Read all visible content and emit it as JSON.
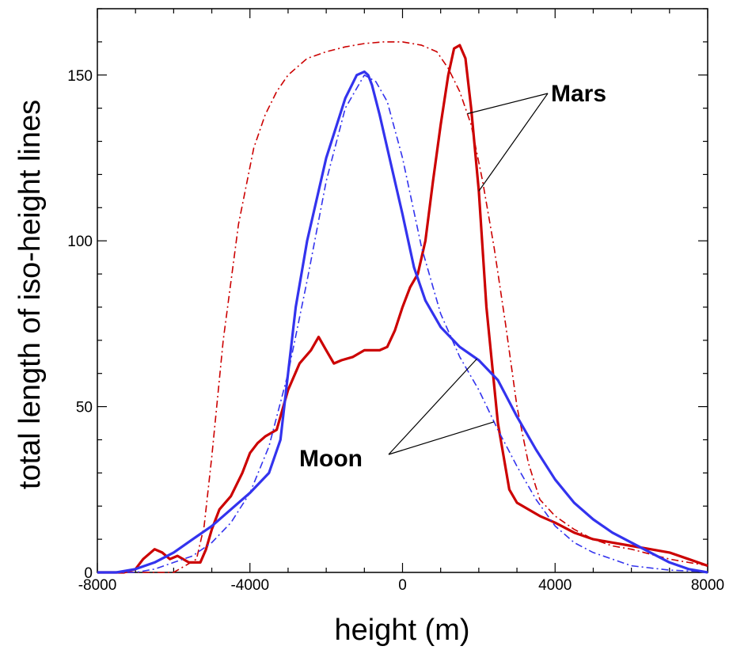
{
  "chart_data": {
    "type": "line",
    "title": "",
    "xlabel": "height (m)",
    "ylabel": "total length of iso-height lines",
    "xlim": [
      -8000,
      8000
    ],
    "ylim": [
      0,
      170
    ],
    "x_ticks": [
      -8000,
      -4000,
      0,
      4000,
      8000
    ],
    "x_tick_labels": [
      "-8000",
      "-4000",
      "0",
      "4000",
      "8000"
    ],
    "y_ticks": [
      0,
      50,
      100,
      150
    ],
    "y_tick_labels": [
      "0",
      "50",
      "100",
      "150"
    ],
    "grid": false,
    "legend": "none",
    "annotations": [
      {
        "text": "Mars",
        "points_to": [
          "mars-fit",
          "mars-data"
        ]
      },
      {
        "text": "Moon",
        "points_to": [
          "moon-fit",
          "moon-data"
        ]
      }
    ],
    "series": [
      {
        "id": "mars-data",
        "style": "solid",
        "color": "#cc0000",
        "x": [
          -8000,
          -7300,
          -7000,
          -6800,
          -6500,
          -6300,
          -6100,
          -5900,
          -5600,
          -5300,
          -5150,
          -5000,
          -4800,
          -4500,
          -4200,
          -4000,
          -3800,
          -3600,
          -3300,
          -3000,
          -2700,
          -2400,
          -2200,
          -2000,
          -1800,
          -1600,
          -1300,
          -1000,
          -800,
          -600,
          -400,
          -200,
          0,
          200,
          400,
          600,
          800,
          1000,
          1200,
          1350,
          1500,
          1650,
          1800,
          2000,
          2200,
          2500,
          2800,
          3000,
          3300,
          3600,
          4000,
          4500,
          5000,
          5500,
          6000,
          6500,
          7000,
          7500,
          8000
        ],
        "y": [
          0,
          0,
          1,
          4,
          7,
          6,
          4,
          5,
          3,
          3,
          7,
          13,
          19,
          23,
          30,
          36,
          39,
          41,
          43,
          55,
          63,
          67,
          71,
          67,
          63,
          64,
          65,
          67,
          67,
          67,
          68,
          73,
          80,
          86,
          90,
          100,
          118,
          135,
          150,
          158,
          159,
          155,
          140,
          115,
          80,
          45,
          25,
          21,
          19,
          17,
          15,
          12,
          10,
          9,
          8,
          7,
          6,
          4,
          2
        ]
      },
      {
        "id": "mars-fit",
        "style": "dashdot",
        "color": "#cc0000",
        "x": [
          -8000,
          -7000,
          -6000,
          -5400,
          -5200,
          -5000,
          -4700,
          -4300,
          -3900,
          -3600,
          -3300,
          -3000,
          -2500,
          -2000,
          -1500,
          -1000,
          -500,
          0,
          500,
          900,
          1200,
          1500,
          1800,
          2100,
          2400,
          2700,
          3000,
          3300,
          3600,
          4000,
          4500,
          5000,
          5500,
          6000,
          7000,
          8000
        ],
        "y": [
          0,
          0,
          0,
          4,
          14,
          35,
          70,
          105,
          128,
          138,
          145,
          150,
          155,
          157,
          158.5,
          159.5,
          160,
          160,
          159,
          157,
          152,
          145,
          135,
          118,
          98,
          75,
          50,
          33,
          22,
          17,
          13,
          10,
          8,
          7,
          4,
          2
        ]
      },
      {
        "id": "moon-data",
        "style": "solid",
        "color": "#3333ee",
        "x": [
          -8000,
          -7500,
          -7000,
          -6500,
          -6000,
          -5500,
          -5000,
          -4500,
          -4000,
          -3500,
          -3200,
          -3000,
          -2800,
          -2500,
          -2000,
          -1500,
          -1200,
          -1000,
          -900,
          -800,
          -600,
          -300,
          0,
          300,
          600,
          1000,
          1500,
          2000,
          2500,
          3000,
          3500,
          4000,
          4500,
          5000,
          5500,
          6000,
          6500,
          7000,
          7500,
          8000
        ],
        "y": [
          0,
          0,
          1,
          3,
          6,
          10,
          14,
          19,
          24,
          30,
          40,
          60,
          80,
          100,
          125,
          143,
          150,
          151,
          150,
          147,
          138,
          123,
          108,
          92,
          82,
          74,
          68,
          64,
          58,
          47,
          37,
          28,
          21,
          16,
          12,
          9,
          6,
          3,
          1,
          0
        ]
      },
      {
        "id": "moon-fit",
        "style": "dashdot",
        "color": "#3333ee",
        "x": [
          -8000,
          -7000,
          -6500,
          -6000,
          -5500,
          -5000,
          -4500,
          -4000,
          -3500,
          -3000,
          -2500,
          -2000,
          -1500,
          -1000,
          -700,
          -400,
          0,
          500,
          1000,
          1500,
          2000,
          2500,
          3000,
          3500,
          4000,
          4500,
          5000,
          5500,
          6000,
          7000,
          8000
        ],
        "y": [
          0,
          0,
          1,
          3,
          5,
          9,
          15,
          24,
          38,
          60,
          88,
          118,
          140,
          150,
          148,
          142,
          125,
          98,
          78,
          65,
          55,
          43,
          32,
          22,
          14,
          9,
          6,
          4,
          2,
          0.7,
          0.2
        ]
      }
    ]
  }
}
